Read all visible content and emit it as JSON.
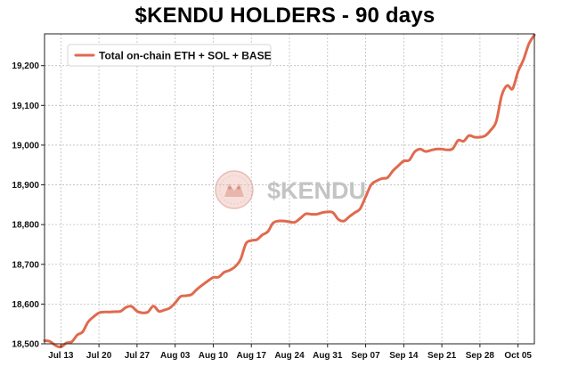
{
  "chart_data": {
    "type": "line",
    "title": "$KENDU HOLDERS - 90 days",
    "xlabel": "",
    "ylabel": "",
    "ylim": [
      18500,
      19280
    ],
    "yticks": [
      "18,500",
      "18,600",
      "18,700",
      "18,800",
      "18,900",
      "19,000",
      "19,100",
      "19,200"
    ],
    "ytick_values": [
      18500,
      18600,
      18700,
      18800,
      18900,
      19000,
      19100,
      19200
    ],
    "xtick_labels": [
      "Jul 13",
      "Jul 20",
      "Jul 27",
      "Aug 03",
      "Aug 10",
      "Aug 17",
      "Aug 24",
      "Aug 31",
      "Sep 07",
      "Sep 14",
      "Sep 21",
      "Sep 28",
      "Oct 05"
    ],
    "x_start": "2024-07-10",
    "x_end": "2024-10-08",
    "grid": true,
    "legend_position": "top-left",
    "line_color": "#e06a4e",
    "watermark": "$KENDU",
    "series": [
      {
        "name": "Total on-chain ETH + SOL + BASE",
        "x": [
          "2024-07-10",
          "2024-07-11",
          "2024-07-12",
          "2024-07-13",
          "2024-07-14",
          "2024-07-15",
          "2024-07-16",
          "2024-07-17",
          "2024-07-18",
          "2024-07-19",
          "2024-07-20",
          "2024-07-21",
          "2024-07-22",
          "2024-07-23",
          "2024-07-24",
          "2024-07-25",
          "2024-07-26",
          "2024-07-27",
          "2024-07-28",
          "2024-07-29",
          "2024-07-30",
          "2024-07-31",
          "2024-08-01",
          "2024-08-02",
          "2024-08-03",
          "2024-08-04",
          "2024-08-05",
          "2024-08-06",
          "2024-08-07",
          "2024-08-08",
          "2024-08-09",
          "2024-08-10",
          "2024-08-11",
          "2024-08-12",
          "2024-08-13",
          "2024-08-14",
          "2024-08-15",
          "2024-08-16",
          "2024-08-17",
          "2024-08-18",
          "2024-08-19",
          "2024-08-20",
          "2024-08-21",
          "2024-08-22",
          "2024-08-23",
          "2024-08-24",
          "2024-08-25",
          "2024-08-26",
          "2024-08-27",
          "2024-08-28",
          "2024-08-29",
          "2024-08-30",
          "2024-08-31",
          "2024-09-01",
          "2024-09-02",
          "2024-09-03",
          "2024-09-04",
          "2024-09-05",
          "2024-09-06",
          "2024-09-07",
          "2024-09-08",
          "2024-09-09",
          "2024-09-10",
          "2024-09-11",
          "2024-09-12",
          "2024-09-13",
          "2024-09-14",
          "2024-09-15",
          "2024-09-16",
          "2024-09-17",
          "2024-09-18",
          "2024-09-19",
          "2024-09-20",
          "2024-09-21",
          "2024-09-22",
          "2024-09-23",
          "2024-09-24",
          "2024-09-25",
          "2024-09-26",
          "2024-09-27",
          "2024-09-28",
          "2024-09-29",
          "2024-09-30",
          "2024-10-01",
          "2024-10-02",
          "2024-10-03",
          "2024-10-04",
          "2024-10-05",
          "2024-10-06",
          "2024-10-07",
          "2024-10-08"
        ],
        "values": [
          18508,
          18506,
          18496,
          18492,
          18502,
          18505,
          18522,
          18530,
          18555,
          18568,
          18578,
          18580,
          18580,
          18581,
          18582,
          18592,
          18594,
          18582,
          18578,
          18580,
          18595,
          18582,
          18585,
          18590,
          18603,
          18619,
          18621,
          18624,
          18637,
          18648,
          18658,
          18667,
          18668,
          18680,
          18685,
          18694,
          18712,
          18752,
          18760,
          18762,
          18774,
          18782,
          18804,
          18809,
          18809,
          18807,
          18806,
          18816,
          18827,
          18826,
          18826,
          18830,
          18832,
          18830,
          18813,
          18809,
          18820,
          18830,
          18840,
          18870,
          18900,
          18910,
          18916,
          18918,
          18935,
          18948,
          18960,
          18962,
          18983,
          18990,
          18984,
          18987,
          18990,
          18990,
          18988,
          18991,
          19012,
          19010,
          19024,
          19020,
          19020,
          19024,
          19038,
          19060,
          19125,
          19150,
          19142,
          19185,
          19215,
          19255,
          19277
        ]
      }
    ]
  }
}
